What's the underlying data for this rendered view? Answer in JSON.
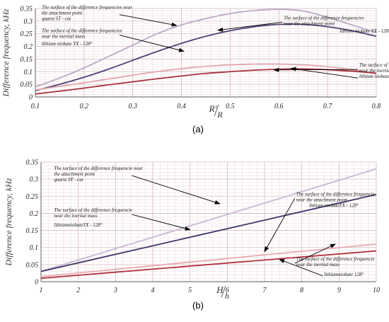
{
  "chart_data": [
    {
      "type": "line",
      "panel_label": "(a)",
      "xlabel_main": "R′",
      "xlabel_sub": "R",
      "ylabel": "Difference frequency, kHz",
      "xlim": [
        0.1,
        0.8
      ],
      "ylim": [
        0,
        0.35
      ],
      "x_ticks": [
        "0.1",
        "0.2",
        "0.3",
        "0.4",
        "0.5",
        "0.6",
        "0.7",
        "0.8"
      ],
      "y_ticks": [
        "0",
        "0.05",
        "0.1",
        "0.15",
        "0.2",
        "0.25",
        "0.3",
        "0.35"
      ],
      "grid": true,
      "x": [
        0.1,
        0.15,
        0.2,
        0.25,
        0.3,
        0.35,
        0.4,
        0.45,
        0.5,
        0.55,
        0.6,
        0.65,
        0.7,
        0.75,
        0.8
      ],
      "series": [
        {
          "color": "#b9a9c4",
          "values": [
            0.04,
            0.075,
            0.115,
            0.16,
            0.205,
            0.25,
            0.285,
            0.31,
            0.33,
            0.342,
            0.347,
            0.34,
            0.315,
            0.285,
            0.255
          ]
        },
        {
          "color": "#4e4275",
          "values": [
            0.025,
            0.05,
            0.078,
            0.11,
            0.145,
            0.18,
            0.212,
            0.24,
            0.262,
            0.278,
            0.287,
            0.287,
            0.278,
            0.262,
            0.24
          ]
        },
        {
          "color": "#e3a4ab",
          "values": [
            0.028,
            0.042,
            0.056,
            0.071,
            0.086,
            0.1,
            0.112,
            0.121,
            0.127,
            0.13,
            0.13,
            0.127,
            0.12,
            0.108,
            0.092
          ]
        },
        {
          "color": "#a8323c",
          "values": [
            0.012,
            0.023,
            0.035,
            0.048,
            0.06,
            0.072,
            0.083,
            0.093,
            0.1,
            0.106,
            0.11,
            0.111,
            0.108,
            0.102,
            0.094
          ]
        }
      ],
      "annotations": [
        {
          "lines": [
            "The surface of the difference frequencies near",
            "the attachment point",
            "quartz ST - cut"
          ],
          "x": 0.113,
          "y": 0.348,
          "arrow_to": [
            0.39,
            0.283
          ]
        },
        {
          "lines": [
            "The surface of the difference frequencies",
            "near the inertial mass"
          ],
          "x": 0.113,
          "y": 0.256,
          "arrow_to": [
            0.405,
            0.181
          ]
        },
        {
          "lines": [
            "lithium niobate YX - 128°"
          ],
          "x": 0.113,
          "y": 0.205,
          "arrow_to": null
        },
        {
          "lines": [
            "The surface of the difference frequencies",
            "near the attachment point"
          ],
          "x": 0.61,
          "y": 0.307,
          "arrow_to": [
            0.475,
            0.264
          ]
        },
        {
          "lines": [
            "lithium niobate YX - 128°"
          ],
          "x": 0.725,
          "y": 0.255,
          "arrow_to": null
        },
        {
          "lines": [
            "The surface of the difference frequencies",
            "near the inertial mass"
          ],
          "x": 0.765,
          "y": 0.12,
          "arrow_to": [
            0.59,
            0.107
          ]
        },
        {
          "lines": [
            "lithium niobate 128°"
          ],
          "x": 0.765,
          "y": 0.075,
          "arrow_to": [
            0.625,
            0.113
          ]
        }
      ]
    },
    {
      "type": "line",
      "panel_label": "(b)",
      "xlabel_main": "H",
      "xlabel_sub": "h",
      "ylabel": "Difference frequency, kHz",
      "xlim": [
        1,
        10
      ],
      "ylim": [
        0,
        0.35
      ],
      "x_ticks": [
        "1",
        "2",
        "3",
        "4",
        "5",
        "6",
        "7",
        "8",
        "9",
        "10"
      ],
      "y_ticks": [
        "0",
        "0.05",
        "0.1",
        "0.15",
        "0.2",
        "0.25",
        "0.3",
        "0.35"
      ],
      "grid": true,
      "x": [
        1,
        10
      ],
      "series": [
        {
          "color": "#c8b8d4",
          "values": [
            0.03,
            0.33
          ]
        },
        {
          "color": "#3e3565",
          "values": [
            0.03,
            0.255
          ]
        },
        {
          "color": "#e7aab1",
          "values": [
            0.015,
            0.11
          ]
        },
        {
          "color": "#b1323c",
          "values": [
            0.01,
            0.09
          ]
        }
      ],
      "annotations": [
        {
          "lines": [
            "The surface of the difference frequencie near",
            "the attachment point",
            "quartz ST - cut"
          ],
          "x": 1.35,
          "y": 0.327,
          "arrow_to": [
            5.8,
            0.228
          ]
        },
        {
          "lines": [
            "The surface of the difference frequencie",
            "near the inertial mass"
          ],
          "x": 1.35,
          "y": 0.205,
          "arrow_to": [
            5.0,
            0.152
          ]
        },
        {
          "lines": [
            "lithiumniobateYX - 128°"
          ],
          "x": 1.35,
          "y": 0.162,
          "arrow_to": null
        },
        {
          "lines": [
            "The surface of the difference frequencie",
            "near the attachment point"
          ],
          "x": 7.85,
          "y": 0.252,
          "arrow_to": [
            7.0,
            0.088
          ]
        },
        {
          "lines": [
            "lithium niobateYX - 128°"
          ],
          "x": 8.2,
          "y": 0.218,
          "arrow_to": null
        },
        {
          "lines": [
            "The surface of the difference frequencie",
            "near the inertial mass"
          ],
          "x": 7.85,
          "y": 0.062,
          "arrow_to": [
            8.9,
            0.11
          ]
        },
        {
          "lines": [
            "lithiumniobate 128°"
          ],
          "x": 8.6,
          "y": 0.017,
          "arrow_to": [
            7.4,
            0.065
          ]
        }
      ]
    }
  ]
}
